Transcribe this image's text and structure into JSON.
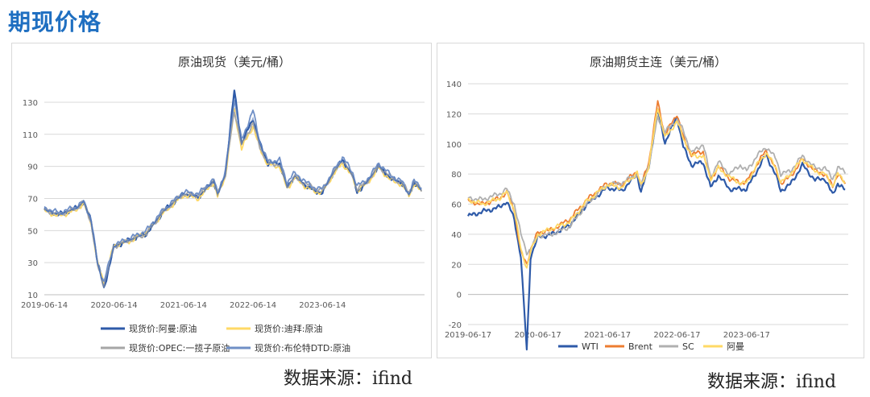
{
  "page": {
    "title": "期现价格",
    "source_left": "数据来源：ifind",
    "source_right": "数据来源：ifind"
  },
  "chart_data": [
    {
      "type": "line",
      "title": "原油现货（美元/桶）",
      "xlabel": "",
      "ylabel": "",
      "x_ticks": [
        "2019-06-14",
        "2020-06-14",
        "2021-06-14",
        "2022-06-14",
        "2023-06-14"
      ],
      "y_ticks": [
        10,
        30,
        50,
        70,
        90,
        110,
        130
      ],
      "ylim": [
        10,
        138
      ],
      "grid": true,
      "legend_position": "bottom",
      "x_dates": [
        "2019-06-14",
        "2019-09-01",
        "2019-12-01",
        "2020-01-06",
        "2020-02-15",
        "2020-03-20",
        "2020-04-22",
        "2020-06-14",
        "2020-09-01",
        "2020-12-01",
        "2021-03-01",
        "2021-06-14",
        "2021-09-01",
        "2021-11-20",
        "2021-12-10",
        "2022-01-20",
        "2022-03-08",
        "2022-04-15",
        "2022-06-14",
        "2022-07-20",
        "2022-09-01",
        "2022-11-01",
        "2022-12-10",
        "2023-01-20",
        "2023-03-20",
        "2023-05-15",
        "2023-06-14",
        "2023-08-10",
        "2023-09-27",
        "2023-11-20",
        "2023-12-13",
        "2024-02-01",
        "2024-04-05",
        "2024-06-10",
        "2024-08-01",
        "2024-09-10",
        "2024-10-07",
        "2024-11-15"
      ],
      "series": [
        {
          "name": "现货价:阿曼:原油",
          "color": "#2e5aa8",
          "values": [
            63,
            60,
            64,
            68,
            56,
            30,
            14,
            40,
            44,
            48,
            62,
            73,
            71,
            81,
            72,
            85,
            137,
            104,
            120,
            104,
            92,
            92,
            77,
            84,
            78,
            74,
            74,
            86,
            94,
            84,
            74,
            80,
            90,
            82,
            80,
            72,
            80,
            75
          ]
        },
        {
          "name": "现货价:迪拜:原油",
          "color": "#ffd966",
          "values": [
            62,
            59,
            63,
            67,
            55,
            29,
            18,
            41,
            43,
            49,
            61,
            72,
            70,
            80,
            71,
            84,
            125,
            101,
            115,
            101,
            91,
            90,
            76,
            83,
            77,
            74,
            74,
            85,
            92,
            83,
            75,
            79,
            89,
            81,
            79,
            72,
            79,
            74
          ]
        },
        {
          "name": "现货价:OPEC:一揽子原油",
          "color": "#a6a6a6",
          "values": [
            63,
            60,
            64,
            68,
            55,
            28,
            16,
            40,
            44,
            48,
            62,
            73,
            72,
            81,
            73,
            85,
            125,
            103,
            117,
            102,
            92,
            91,
            78,
            83,
            79,
            76,
            75,
            86,
            94,
            84,
            76,
            80,
            90,
            83,
            80,
            74,
            80,
            76
          ]
        },
        {
          "name": "现货价:布伦特DTD:原油",
          "color": "#6f8fc6",
          "values": [
            64,
            61,
            65,
            68,
            57,
            29,
            18,
            41,
            45,
            50,
            63,
            74,
            73,
            82,
            73,
            87,
            132,
            106,
            125,
            105,
            93,
            94,
            80,
            86,
            80,
            76,
            76,
            87,
            96,
            86,
            78,
            81,
            92,
            84,
            81,
            73,
            81,
            77
          ]
        }
      ]
    },
    {
      "type": "line",
      "title": "原油期货主连（美元/桶）",
      "xlabel": "",
      "ylabel": "",
      "x_ticks": [
        "2019-06-17",
        "2020-06-17",
        "2021-06-17",
        "2022-06-17",
        "2023-06-17"
      ],
      "y_ticks": [
        -20,
        0,
        20,
        40,
        60,
        80,
        100,
        120,
        140
      ],
      "ylim": [
        -20,
        140
      ],
      "grid": true,
      "legend_position": "bottom",
      "x_dates": [
        "2019-06-17",
        "2019-09-01",
        "2019-12-01",
        "2020-01-06",
        "2020-02-15",
        "2020-03-20",
        "2020-04-20",
        "2020-05-10",
        "2020-06-17",
        "2020-09-01",
        "2020-12-01",
        "2021-03-01",
        "2021-06-17",
        "2021-09-01",
        "2021-11-20",
        "2021-12-10",
        "2022-01-20",
        "2022-03-08",
        "2022-04-15",
        "2022-06-17",
        "2022-07-20",
        "2022-09-01",
        "2022-11-01",
        "2022-12-10",
        "2023-01-20",
        "2023-03-20",
        "2023-05-15",
        "2023-06-17",
        "2023-08-10",
        "2023-09-27",
        "2023-11-20",
        "2023-12-13",
        "2024-02-01",
        "2024-04-05",
        "2024-06-10",
        "2024-08-01",
        "2024-09-10",
        "2024-10-07",
        "2024-11-15"
      ],
      "series": [
        {
          "name": "WTI",
          "color": "#2e5aa8",
          "values": [
            52,
            55,
            58,
            62,
            50,
            25,
            -37,
            25,
            38,
            40,
            46,
            60,
            71,
            69,
            80,
            68,
            85,
            123,
            101,
            118,
            98,
            86,
            88,
            71,
            79,
            70,
            70,
            70,
            82,
            93,
            78,
            69,
            73,
            86,
            76,
            77,
            66,
            74,
            69
          ]
        },
        {
          "name": "Brent",
          "color": "#ed7d31",
          "values": [
            62,
            60,
            64,
            68,
            56,
            28,
            20,
            30,
            41,
            43,
            50,
            63,
            74,
            73,
            82,
            72,
            88,
            128,
            106,
            120,
            104,
            93,
            95,
            76,
            85,
            77,
            74,
            75,
            86,
            96,
            82,
            74,
            78,
            90,
            82,
            80,
            72,
            80,
            73
          ]
        },
        {
          "name": "SC",
          "color": "#b0b0b0",
          "values": [
            64,
            63,
            67,
            70,
            60,
            40,
            28,
            30,
            39,
            40,
            45,
            60,
            73,
            74,
            80,
            72,
            86,
            118,
            108,
            116,
            109,
            94,
            100,
            78,
            88,
            80,
            86,
            82,
            92,
            98,
            90,
            80,
            82,
            92,
            84,
            84,
            77,
            84,
            82
          ]
        },
        {
          "name": "阿曼",
          "color": "#ffd966",
          "values": [
            63,
            60,
            64,
            68,
            56,
            30,
            18,
            28,
            40,
            44,
            48,
            62,
            73,
            71,
            81,
            72,
            85,
            125,
            104,
            115,
            104,
            92,
            92,
            77,
            84,
            78,
            74,
            74,
            86,
            94,
            84,
            74,
            80,
            90,
            82,
            80,
            72,
            80,
            75
          ]
        }
      ]
    }
  ]
}
